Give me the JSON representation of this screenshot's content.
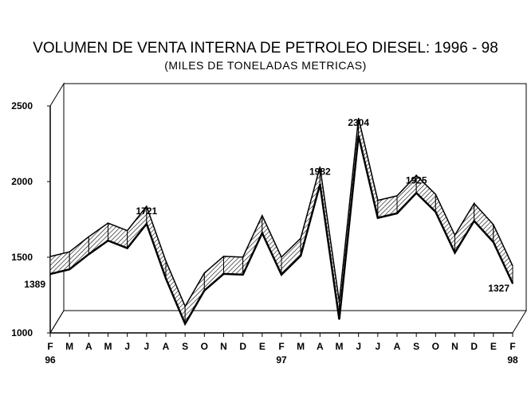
{
  "chart_data": {
    "type": "line",
    "style": "3d-ribbon",
    "title": "VOLUMEN DE VENTA INTERNA DE PETROLEO DIESEL: 1996 - 98",
    "subtitle": "(MILES DE TONELADAS METRICAS)",
    "xlabel": "",
    "ylabel": "",
    "ylim": [
      1000,
      2500
    ],
    "yticks": [
      1000,
      1500,
      2000,
      2500
    ],
    "grid": false,
    "categories": [
      "F",
      "M",
      "A",
      "M",
      "J",
      "J",
      "A",
      "S",
      "O",
      "N",
      "D",
      "E",
      "F",
      "M",
      "A",
      "M",
      "J",
      "J",
      "A",
      "S",
      "O",
      "N",
      "D",
      "E",
      "F"
    ],
    "year_labels": [
      {
        "index": 0,
        "label": "96"
      },
      {
        "index": 12,
        "label": "97"
      },
      {
        "index": 24,
        "label": "98"
      }
    ],
    "series": [
      {
        "name": "Volumen de venta",
        "values": [
          1389,
          1420,
          1520,
          1610,
          1560,
          1721,
          1360,
          1060,
          1280,
          1390,
          1385,
          1660,
          1385,
          1510,
          1982,
          1090,
          2304,
          1760,
          1790,
          1925,
          1800,
          1530,
          1740,
          1600,
          1327
        ]
      }
    ],
    "annotations": [
      {
        "index": 0,
        "text": "1389"
      },
      {
        "index": 5,
        "text": "1721"
      },
      {
        "index": 14,
        "text": "1982"
      },
      {
        "index": 16,
        "text": "2304"
      },
      {
        "index": 19,
        "text": "1925"
      },
      {
        "index": 24,
        "text": "1327"
      }
    ]
  }
}
